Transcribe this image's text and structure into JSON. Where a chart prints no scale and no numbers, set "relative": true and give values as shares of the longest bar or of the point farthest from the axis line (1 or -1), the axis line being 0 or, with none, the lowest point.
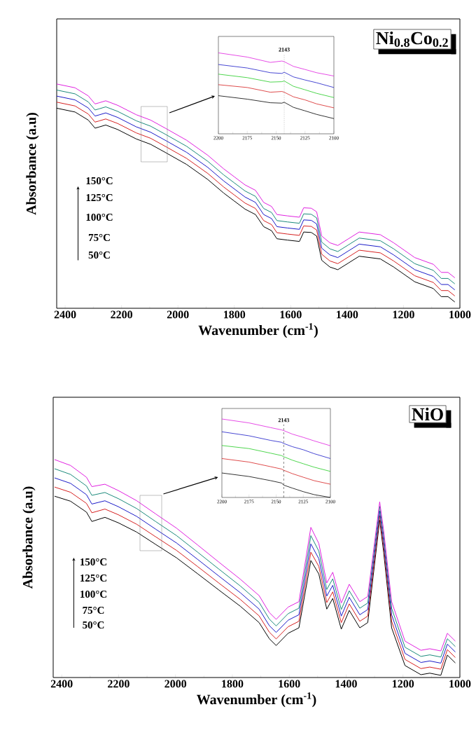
{
  "chart_data": [
    {
      "type": "line",
      "title": "Ni$_{0.8}$Co$_{0.2}$",
      "xlabel": "Wavenumber (cm$^{-1}$)",
      "ylabel": "Absorbance (a.u)",
      "relative": true,
      "xlim": [
        2430,
        1000
      ],
      "xticks": [
        2400,
        2200,
        2000,
        1800,
        1600,
        1400,
        1200,
        1000
      ],
      "annotations": [
        "150°C",
        "125°C",
        "100°C",
        "75°C",
        "50°C"
      ],
      "x": [
        2430,
        2365,
        2318,
        2294,
        2280,
        2256,
        2214,
        2148,
        2097,
        2045,
        1969,
        1894,
        1838,
        1800,
        1762,
        1725,
        1696,
        1668,
        1649,
        1612,
        1569,
        1554,
        1527,
        1508,
        1490,
        1461,
        1433,
        1395,
        1357,
        1282,
        1235,
        1160,
        1094,
        1066,
        1042,
        1018
      ],
      "series": [
        {
          "color": "#000000",
          "values": [
            0.892,
            0.875,
            0.839,
            0.803,
            0.808,
            0.817,
            0.797,
            0.755,
            0.731,
            0.695,
            0.641,
            0.574,
            0.514,
            0.478,
            0.442,
            0.418,
            0.364,
            0.346,
            0.31,
            0.304,
            0.298,
            0.34,
            0.338,
            0.322,
            0.214,
            0.184,
            0.172,
            0.202,
            0.232,
            0.22,
            0.184,
            0.118,
            0.088,
            0.052,
            0.052,
            0.028
          ]
        },
        {
          "color": "#d62020",
          "values": [
            0.919,
            0.902,
            0.866,
            0.83,
            0.835,
            0.844,
            0.824,
            0.782,
            0.758,
            0.722,
            0.668,
            0.601,
            0.541,
            0.505,
            0.469,
            0.445,
            0.391,
            0.373,
            0.337,
            0.331,
            0.325,
            0.367,
            0.365,
            0.349,
            0.241,
            0.211,
            0.199,
            0.229,
            0.259,
            0.247,
            0.211,
            0.145,
            0.115,
            0.079,
            0.079,
            0.055
          ]
        },
        {
          "color": "#1a1ac8",
          "values": [
            0.946,
            0.929,
            0.893,
            0.857,
            0.862,
            0.871,
            0.851,
            0.809,
            0.785,
            0.749,
            0.695,
            0.628,
            0.568,
            0.532,
            0.496,
            0.472,
            0.418,
            0.4,
            0.364,
            0.358,
            0.352,
            0.394,
            0.392,
            0.376,
            0.268,
            0.238,
            0.226,
            0.256,
            0.286,
            0.274,
            0.238,
            0.172,
            0.142,
            0.106,
            0.106,
            0.082
          ]
        },
        {
          "color": "#1a8a7a",
          "values": [
            0.973,
            0.956,
            0.92,
            0.884,
            0.889,
            0.898,
            0.878,
            0.836,
            0.812,
            0.776,
            0.722,
            0.655,
            0.595,
            0.559,
            0.523,
            0.499,
            0.445,
            0.427,
            0.391,
            0.385,
            0.379,
            0.421,
            0.419,
            0.403,
            0.295,
            0.265,
            0.253,
            0.283,
            0.313,
            0.301,
            0.265,
            0.199,
            0.169,
            0.133,
            0.133,
            0.109
          ]
        },
        {
          "color": "#e020e0",
          "values": [
            1.0,
            0.983,
            0.947,
            0.911,
            0.916,
            0.925,
            0.905,
            0.863,
            0.839,
            0.803,
            0.749,
            0.682,
            0.622,
            0.586,
            0.55,
            0.526,
            0.472,
            0.454,
            0.418,
            0.412,
            0.406,
            0.448,
            0.446,
            0.43,
            0.322,
            0.292,
            0.28,
            0.31,
            0.34,
            0.328,
            0.292,
            0.226,
            0.196,
            0.16,
            0.16,
            0.136
          ]
        }
      ]
    },
    {
      "type": "line",
      "relative": true,
      "xlim": [
        2200,
        2100
      ],
      "xticks": [
        2200,
        2175,
        2150,
        2125,
        2100
      ],
      "ref_lines": [
        {
          "axis": "x",
          "value": 2143,
          "label": "2143",
          "color": "#808080",
          "line_style": "dotted"
        }
      ],
      "x": [
        2200,
        2175,
        2155,
        2145,
        2143,
        2135,
        2125,
        2115,
        2100
      ],
      "series": [
        {
          "color": "#000000",
          "values": [
            0.471,
            0.428,
            0.384,
            0.379,
            0.39,
            0.327,
            0.284,
            0.24,
            0.188
          ]
        },
        {
          "color": "#d62020",
          "values": [
            0.607,
            0.572,
            0.514,
            0.523,
            0.514,
            0.457,
            0.419,
            0.37,
            0.321
          ]
        },
        {
          "color": "#22cc22",
          "values": [
            0.737,
            0.694,
            0.639,
            0.644,
            0.653,
            0.587,
            0.544,
            0.5,
            0.448
          ]
        },
        {
          "color": "#1a1ac8",
          "values": [
            0.856,
            0.813,
            0.755,
            0.746,
            0.761,
            0.703,
            0.665,
            0.631,
            0.572
          ]
        },
        {
          "color": "#e020e0",
          "values": [
            1.0,
            0.948,
            0.882,
            0.899,
            0.891,
            0.833,
            0.795,
            0.755,
            0.714
          ]
        }
      ]
    },
    {
      "type": "line",
      "title": "NiO",
      "xlabel": "Wavenumber (cm$^{-1}$)",
      "ylabel": "Absorbance (a.u)",
      "relative": true,
      "xlim": [
        2430,
        1000
      ],
      "xticks": [
        2400,
        2200,
        2000,
        1800,
        1600,
        1400,
        1200,
        1000
      ],
      "annotations": [
        "150°C",
        "125°C",
        "100°C",
        "75°C",
        "50°C"
      ],
      "x": [
        2425,
        2369,
        2313,
        2294,
        2248,
        2201,
        2136,
        2070,
        1996,
        1921,
        1847,
        1772,
        1706,
        1670,
        1646,
        1604,
        1566,
        1524,
        1496,
        1468,
        1447,
        1417,
        1389,
        1352,
        1324,
        1282,
        1268,
        1240,
        1193,
        1137,
        1106,
        1067,
        1044,
        1016
      ],
      "series": [
        {
          "color": "#000000",
          "values": [
            0.832,
            0.809,
            0.759,
            0.716,
            0.735,
            0.71,
            0.667,
            0.611,
            0.549,
            0.475,
            0.401,
            0.327,
            0.252,
            0.178,
            0.147,
            0.203,
            0.228,
            0.537,
            0.475,
            0.314,
            0.363,
            0.222,
            0.308,
            0.228,
            0.252,
            0.722,
            0.574,
            0.228,
            0.055,
            0.013,
            0.02,
            0.01,
            0.103,
            0.067
          ]
        },
        {
          "color": "#d62020",
          "values": [
            0.874,
            0.85,
            0.799,
            0.756,
            0.773,
            0.747,
            0.703,
            0.646,
            0.583,
            0.508,
            0.433,
            0.358,
            0.283,
            0.208,
            0.177,
            0.233,
            0.258,
            0.575,
            0.51,
            0.344,
            0.393,
            0.252,
            0.338,
            0.258,
            0.282,
            0.743,
            0.599,
            0.258,
            0.083,
            0.041,
            0.048,
            0.038,
            0.128,
            0.092
          ]
        },
        {
          "color": "#1a1ac8",
          "values": [
            0.916,
            0.891,
            0.839,
            0.796,
            0.811,
            0.784,
            0.739,
            0.681,
            0.617,
            0.541,
            0.465,
            0.389,
            0.314,
            0.238,
            0.207,
            0.263,
            0.288,
            0.613,
            0.545,
            0.374,
            0.423,
            0.282,
            0.368,
            0.288,
            0.312,
            0.764,
            0.624,
            0.288,
            0.111,
            0.069,
            0.076,
            0.066,
            0.153,
            0.117
          ]
        },
        {
          "color": "#1a8a7a",
          "values": [
            0.958,
            0.932,
            0.879,
            0.836,
            0.849,
            0.821,
            0.775,
            0.716,
            0.651,
            0.574,
            0.497,
            0.42,
            0.345,
            0.268,
            0.237,
            0.293,
            0.318,
            0.651,
            0.58,
            0.404,
            0.453,
            0.312,
            0.398,
            0.318,
            0.342,
            0.785,
            0.649,
            0.318,
            0.139,
            0.097,
            0.104,
            0.094,
            0.178,
            0.142
          ]
        },
        {
          "color": "#e020e0",
          "values": [
            1.0,
            0.973,
            0.919,
            0.876,
            0.887,
            0.858,
            0.811,
            0.751,
            0.685,
            0.607,
            0.529,
            0.451,
            0.376,
            0.298,
            0.267,
            0.323,
            0.348,
            0.689,
            0.615,
            0.434,
            0.483,
            0.342,
            0.428,
            0.348,
            0.372,
            0.806,
            0.674,
            0.348,
            0.167,
            0.125,
            0.132,
            0.122,
            0.203,
            0.167
          ]
        }
      ]
    },
    {
      "type": "line",
      "relative": true,
      "xlim": [
        2200,
        2100
      ],
      "xticks": [
        2200,
        2175,
        2150,
        2125,
        2100
      ],
      "ref_lines": [
        {
          "axis": "x",
          "value": 2143,
          "label": "2143",
          "color": "#000000",
          "line_style": "dashed"
        }
      ],
      "x": [
        2200,
        2175,
        2155,
        2145,
        2143,
        2135,
        2125,
        2115,
        2100
      ],
      "series": [
        {
          "color": "#000000",
          "values": [
            0.312,
            0.267,
            0.214,
            0.184,
            0.157,
            0.119,
            0.074,
            0.036,
            0.0
          ]
        },
        {
          "color": "#d62020",
          "values": [
            0.496,
            0.451,
            0.392,
            0.362,
            0.347,
            0.303,
            0.258,
            0.214,
            0.169
          ]
        },
        {
          "color": "#22cc22",
          "values": [
            0.662,
            0.623,
            0.564,
            0.534,
            0.519,
            0.475,
            0.43,
            0.386,
            0.332
          ]
        },
        {
          "color": "#1a1ac8",
          "values": [
            0.837,
            0.786,
            0.727,
            0.703,
            0.688,
            0.647,
            0.608,
            0.558,
            0.496
          ]
        },
        {
          "color": "#e020e0",
          "values": [
            1.0,
            0.95,
            0.89,
            0.861,
            0.852,
            0.807,
            0.766,
            0.721,
            0.659
          ]
        }
      ]
    }
  ]
}
